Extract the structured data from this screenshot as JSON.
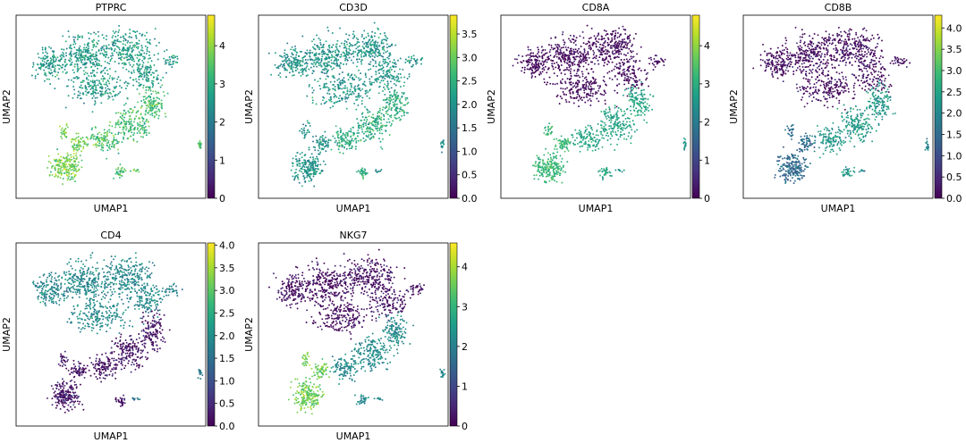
{
  "chart_data": [
    {
      "type": "scatter",
      "title": "PTPRC",
      "xlabel": "UMAP1",
      "ylabel": "UMAP2",
      "colorbar": {
        "cmap": "viridis",
        "vmin": 0,
        "vmax": 4.8,
        "ticks": [
          "0",
          "1",
          "2",
          "3",
          "4"
        ]
      },
      "expression_levels": {
        "upper_mass": 2.6,
        "right_lobe": 3.3,
        "bottom_cluster": 3.8,
        "islet": 3.6,
        "variation": 0.8
      }
    },
    {
      "type": "scatter",
      "title": "CD3D",
      "xlabel": "UMAP1",
      "ylabel": "UMAP2",
      "colorbar": {
        "cmap": "viridis",
        "vmin": 0,
        "vmax": 3.9,
        "ticks": [
          "0.0",
          "0.5",
          "1.0",
          "1.5",
          "2.0",
          "2.5",
          "3.0",
          "3.5"
        ]
      },
      "expression_levels": {
        "upper_mass": 2.0,
        "right_lobe": 2.4,
        "bottom_cluster": 2.0,
        "islet": 1.8,
        "variation": 0.6
      }
    },
    {
      "type": "scatter",
      "title": "CD8A",
      "xlabel": "UMAP1",
      "ylabel": "UMAP2",
      "colorbar": {
        "cmap": "viridis",
        "vmin": 0,
        "vmax": 4.8,
        "ticks": [
          "0",
          "1",
          "2",
          "3",
          "4"
        ]
      },
      "expression_levels": {
        "upper_mass": 0.1,
        "right_lobe": 2.8,
        "bottom_cluster": 3.2,
        "islet": 2.5,
        "variation": 0.5
      }
    },
    {
      "type": "scatter",
      "title": "CD8B",
      "xlabel": "UMAP1",
      "ylabel": "UMAP2",
      "colorbar": {
        "cmap": "viridis",
        "vmin": 0,
        "vmax": 4.3,
        "ticks": [
          "0.0",
          "0.5",
          "1.0",
          "1.5",
          "2.0",
          "2.5",
          "3.0",
          "3.5",
          "4.0"
        ]
      },
      "expression_levels": {
        "upper_mass": 0.1,
        "right_lobe": 2.3,
        "bottom_cluster": 1.5,
        "islet": 2.0,
        "variation": 0.6
      }
    },
    {
      "type": "scatter",
      "title": "CD4",
      "xlabel": "UMAP1",
      "ylabel": "UMAP2",
      "colorbar": {
        "cmap": "viridis",
        "vmin": 0,
        "vmax": 4.05,
        "ticks": [
          "0.0",
          "0.5",
          "1.0",
          "1.5",
          "2.0",
          "2.5",
          "3.0",
          "3.5",
          "4.0"
        ]
      },
      "expression_levels": {
        "upper_mass": 1.9,
        "right_lobe": 0.2,
        "bottom_cluster": 0.2,
        "islet": 1.6,
        "variation": 0.6
      }
    },
    {
      "type": "scatter",
      "title": "NKG7",
      "xlabel": "UMAP1",
      "ylabel": "UMAP2",
      "colorbar": {
        "cmap": "viridis",
        "vmin": 0,
        "vmax": 4.6,
        "ticks": [
          "0",
          "1",
          "2",
          "3",
          "4"
        ]
      },
      "expression_levels": {
        "upper_mass": 0.15,
        "right_lobe": 2.2,
        "bottom_cluster": 3.6,
        "islet": 2.2,
        "variation": 0.6
      }
    }
  ],
  "colors": {
    "viridis_low": "#440154",
    "viridis_mid": "#21918c",
    "viridis_high": "#fde725"
  }
}
